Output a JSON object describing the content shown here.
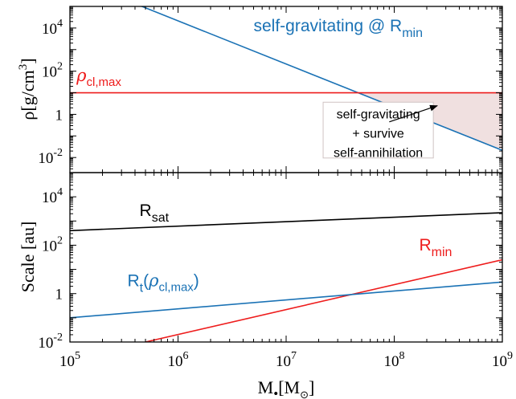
{
  "chart_data": [
    {
      "type": "line",
      "xscale": "log",
      "yscale": "log",
      "xlim": [
        100000,
        1000000000
      ],
      "ylim": [
        0.002,
        100000
      ],
      "grid": false,
      "ylabel": {
        "main": "ρ[g/cm",
        "sup": "3",
        "end": "]"
      },
      "yticks": [
        {
          "v": 10000,
          "base": "10",
          "exp": "4"
        },
        {
          "v": 100,
          "base": "10",
          "exp": "2"
        },
        {
          "v": 1,
          "base": "1",
          "exp": ""
        },
        {
          "v": 0.01,
          "base": "10",
          "exp": "-2"
        }
      ],
      "series": [
        {
          "name": "self-gravitating @ R_min",
          "color": "#1a72b5",
          "x": [
            100000,
            1000000000
          ],
          "y": [
            2154000,
            0.0215
          ]
        },
        {
          "name": "ρ_cl,max",
          "color": "#ee1c1c",
          "x": [
            100000,
            1000000000
          ],
          "y": [
            10,
            10
          ]
        }
      ],
      "region": {
        "fill": "#f0e0e0",
        "x_from": 46000000,
        "x_to": 1000000000,
        "upper": 10,
        "lower_series": 0
      },
      "labels": {
        "selfgrav": {
          "text": "self-gravitating @ R",
          "sub": "min",
          "x": 5000000,
          "y": 7000,
          "color": "#1a72b5"
        },
        "rhomax": {
          "greek": "ρ",
          "sub": "cl,max",
          "x": 115000,
          "y": 35,
          "color": "#ee1c1c"
        }
      },
      "annotation": {
        "lines": [
          "self-gravitating",
          "+ survive",
          "self-annihilation"
        ],
        "box_x": [
          22000000,
          230000000
        ],
        "box_y": [
          0.06,
          0.0095
        ],
        "arrow_from": [
          90000000,
          0.45
        ],
        "arrow_to": [
          250000000,
          2.5
        ]
      }
    },
    {
      "type": "line",
      "xscale": "log",
      "yscale": "log",
      "xlim": [
        100000,
        1000000000
      ],
      "ylim": [
        0.01,
        100000
      ],
      "grid": false,
      "xlabel": {
        "main": "M",
        "sub": "•",
        "bracket": "[M",
        "sub2": "⊙",
        "end": "]"
      },
      "ylabel": {
        "text": "Scale [au]"
      },
      "xticks": [
        {
          "v": 100000,
          "base": "10",
          "exp": "5"
        },
        {
          "v": 1000000,
          "base": "10",
          "exp": "6"
        },
        {
          "v": 10000000,
          "base": "10",
          "exp": "7"
        },
        {
          "v": 100000000,
          "base": "10",
          "exp": "8"
        },
        {
          "v": 1000000000,
          "base": "10",
          "exp": "9"
        }
      ],
      "yticks": [
        {
          "v": 10000,
          "base": "10",
          "exp": "4"
        },
        {
          "v": 100,
          "base": "10",
          "exp": "2"
        },
        {
          "v": 1,
          "base": "1",
          "exp": ""
        },
        {
          "v": 0.01,
          "base": "10",
          "exp": "-2"
        }
      ],
      "series": [
        {
          "name": "R_sat",
          "color": "#000000",
          "x": [
            100000,
            1000000000
          ],
          "y": [
            400,
            2200
          ]
        },
        {
          "name": "R_min",
          "color": "#ee1c1c",
          "x": [
            500000,
            1000000000
          ],
          "y": [
            0.01,
            25
          ]
        },
        {
          "name": "R_t(ρ_cl,max)",
          "color": "#1a72b5",
          "x": [
            100000,
            1000000000
          ],
          "y": [
            0.1,
            3
          ]
        }
      ],
      "labels": {
        "rsat": {
          "text": "R",
          "sub": "sat",
          "x": 440000,
          "y": 1600,
          "color": "#000000"
        },
        "rmin": {
          "text": "R",
          "sub": "min",
          "x": 170000000,
          "y": 60,
          "color": "#ee1c1c"
        },
        "rt": {
          "text": "R",
          "sub": "t",
          "tail": "(ρ",
          "sub2": "cl,max",
          "end": ")",
          "x": 340000,
          "y": 2,
          "color": "#1a72b5"
        }
      }
    }
  ]
}
